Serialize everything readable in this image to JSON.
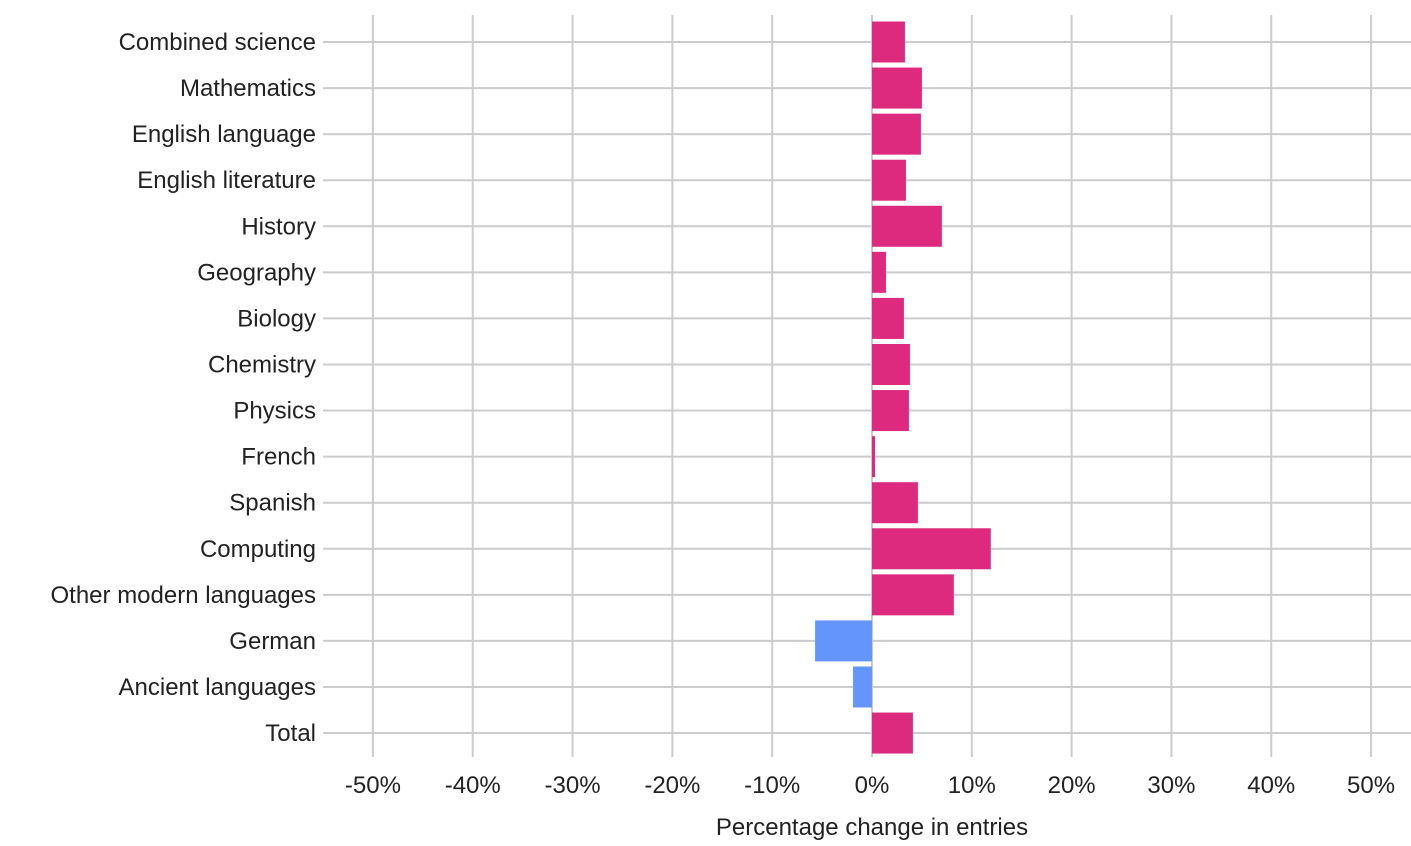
{
  "chart_data": {
    "type": "bar",
    "orientation": "horizontal",
    "title": "",
    "xlabel": "Percentage change in entries",
    "ylabel": "",
    "xlim": [
      -55,
      54
    ],
    "grid": true,
    "legend": "none",
    "categories": [
      "Combined science",
      "Mathematics",
      "English language",
      "English literature",
      "History",
      "Geography",
      "Biology",
      "Chemistry",
      "Physics",
      "French",
      "Spanish",
      "Computing",
      "Other modern languages",
      "German",
      "Ancient languages",
      "Total"
    ],
    "values": [
      3.3,
      5.0,
      4.9,
      3.4,
      7.0,
      1.4,
      3.2,
      3.8,
      3.7,
      0.3,
      4.6,
      11.9,
      8.2,
      -5.7,
      -1.9,
      4.1
    ],
    "x_ticks": [
      -50,
      -40,
      -30,
      -20,
      -10,
      0,
      10,
      20,
      30,
      40,
      50
    ],
    "x_tick_labels": [
      "-50%",
      "-40%",
      "-30%",
      "-20%",
      "-10%",
      "0%",
      "10%",
      "20%",
      "30%",
      "40%",
      "50%"
    ],
    "colors": {
      "positive": "#de2a7e",
      "negative": "#6495fc",
      "grid": "#cccccc",
      "text": "#222222"
    }
  }
}
